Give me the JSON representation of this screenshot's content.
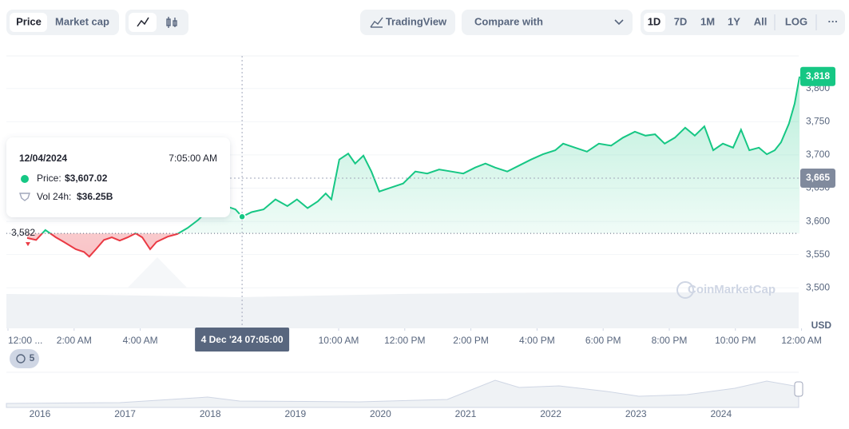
{
  "toolbar": {
    "price": "Price",
    "market_cap": "Market cap",
    "tradingview": "TradingView",
    "compare": "Compare with",
    "ranges": [
      "1D",
      "7D",
      "1M",
      "1Y",
      "All"
    ],
    "log": "LOG",
    "more": "···",
    "history_count": "5"
  },
  "tooltip": {
    "date": "12/04/2024",
    "time": "7:05:00 AM",
    "price_label": "Price:",
    "price": "$3,607.02",
    "volume_label": "Vol 24h:",
    "volume": "$36.25B"
  },
  "crosshair_time": "4 Dec '24 07:05:00",
  "watermark": "CoinMarketCap",
  "navigator": {
    "years": [
      "2016",
      "2017",
      "2018",
      "2019",
      "2020",
      "2021",
      "2022",
      "2023",
      "2024"
    ]
  },
  "chart_data": {
    "type": "line",
    "y_unit": "USD",
    "x": [
      0.58,
      0.85,
      1.13,
      1.45,
      1.69,
      2.05,
      2.3,
      2.46,
      2.66,
      2.9,
      3.14,
      3.38,
      3.62,
      3.86,
      4.06,
      4.3,
      4.49,
      4.83,
      5.12,
      5.43,
      5.75,
      5.99,
      6.28,
      6.59,
      6.88,
      7.08,
      7.37,
      7.73,
      8.09,
      8.45,
      8.74,
      9.06,
      9.37,
      9.61,
      9.78,
      10.02,
      10.29,
      10.5,
      10.75,
      10.99,
      11.23,
      11.59,
      11.95,
      12.32,
      12.68,
      13.04,
      13.41,
      13.77,
      14.13,
      14.44,
      14.73,
      15.1,
      15.46,
      15.82,
      16.18,
      16.55,
      16.79,
      17.15,
      17.51,
      17.87,
      18.24,
      18.6,
      18.96,
      19.28,
      19.57,
      19.86,
      20.17,
      20.48,
      20.77,
      21.06,
      21.33,
      21.62,
      21.93,
      22.17,
      22.42,
      22.71,
      22.95,
      23.19,
      23.38,
      23.62,
      23.79,
      23.94
    ],
    "values": [
      3575,
      3572,
      3587,
      3576,
      3569,
      3558,
      3554,
      3547,
      3558,
      3572,
      3576,
      3571,
      3576,
      3582,
      3576,
      3558,
      3569,
      3577,
      3581,
      3590,
      3602,
      3614,
      3623,
      3623,
      3618,
      3607,
      3614,
      3618,
      3633,
      3623,
      3633,
      3620,
      3630,
      3642,
      3633,
      3693,
      3702,
      3687,
      3699,
      3675,
      3645,
      3651,
      3657,
      3675,
      3672,
      3678,
      3675,
      3672,
      3681,
      3687,
      3681,
      3675,
      3684,
      3693,
      3701,
      3707,
      3717,
      3711,
      3705,
      3717,
      3714,
      3726,
      3735,
      3729,
      3731,
      3717,
      3726,
      3741,
      3729,
      3743,
      3707,
      3717,
      3711,
      3738,
      3707,
      3711,
      3701,
      3707,
      3719,
      3747,
      3777,
      3818
    ],
    "color_up": "#16c784",
    "color_down": "#ea3943",
    "baseline": {
      "value": 3582,
      "label": "3,582"
    },
    "last_price": {
      "value": 3818,
      "label": "3,818"
    },
    "crosshair": {
      "value": 3665,
      "label": "3,665"
    },
    "xlim": [
      0,
      24.3
    ],
    "ylim": [
      3439,
      3849
    ],
    "xticks": [
      {
        "value": 0,
        "label": "12:00 ..."
      },
      {
        "value": 2,
        "label": "2:00 AM"
      },
      {
        "value": 4,
        "label": "4:00 AM"
      },
      {
        "value": 10,
        "label": "10:00 AM"
      },
      {
        "value": 12,
        "label": "12:00 PM"
      },
      {
        "value": 14,
        "label": "2:00 PM"
      },
      {
        "value": 16,
        "label": "4:00 PM"
      },
      {
        "value": 18,
        "label": "6:00 PM"
      },
      {
        "value": 20,
        "label": "8:00 PM"
      },
      {
        "value": 22,
        "label": "10:00 PM"
      },
      {
        "value": 24,
        "label": "12:00 AM"
      }
    ],
    "yticks": [
      {
        "value": 3500,
        "label": "3,500"
      },
      {
        "value": 3550,
        "label": "3,550"
      },
      {
        "value": 3600,
        "label": "3,600"
      },
      {
        "value": 3650,
        "label": "3,650"
      },
      {
        "value": 3700,
        "label": "3,700"
      },
      {
        "value": 3750,
        "label": "3,750"
      },
      {
        "value": 3800,
        "label": "3,800"
      }
    ],
    "grid": true
  }
}
